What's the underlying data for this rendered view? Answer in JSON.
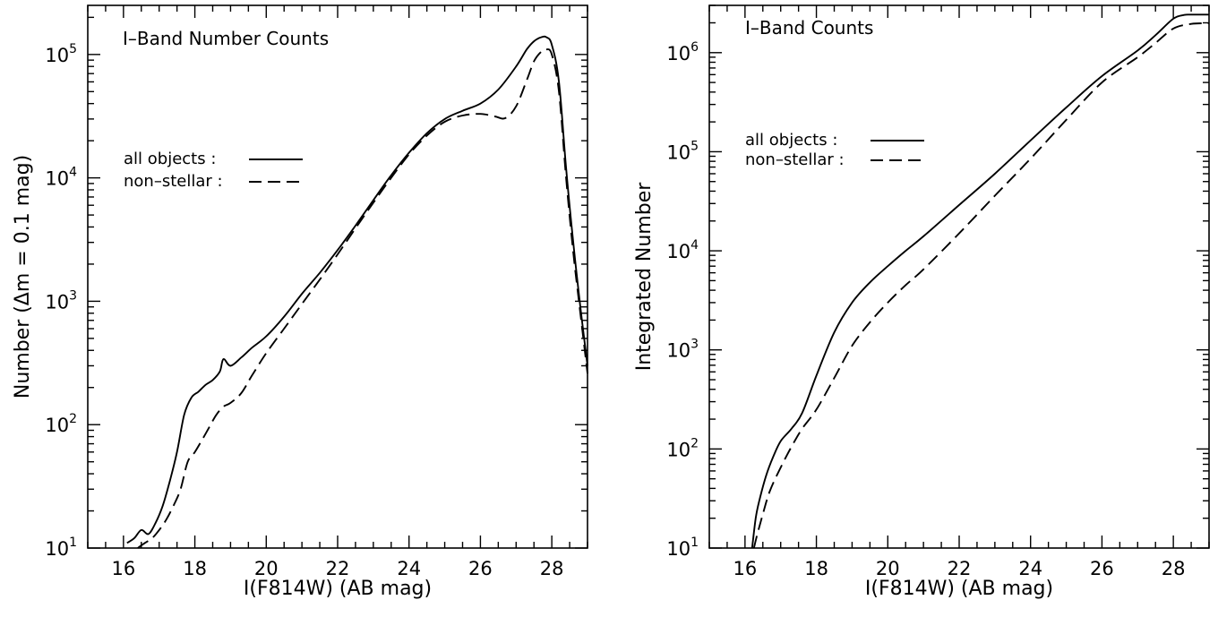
{
  "chart_data": [
    {
      "type": "line",
      "annotation": "I–Band Number Counts",
      "xlabel": "I(F814W) (AB mag)",
      "ylabel": "Number (Δm = 0.1 mag)",
      "xlim": [
        15,
        29
      ],
      "ylim": [
        10,
        250000
      ],
      "yscale": "log",
      "x_ticks": [
        "16",
        "18",
        "20",
        "22",
        "24",
        "26",
        "28"
      ],
      "y_ticks": [
        {
          "base": "10",
          "exp": "1"
        },
        {
          "base": "10",
          "exp": "2"
        },
        {
          "base": "10",
          "exp": "3"
        },
        {
          "base": "10",
          "exp": "4"
        },
        {
          "base": "10",
          "exp": "5"
        }
      ],
      "legend": "middle-left",
      "series": [
        {
          "name": "all objects :",
          "style": "solid",
          "x": [
            16.1,
            16.3,
            16.5,
            16.7,
            16.9,
            17.1,
            17.3,
            17.5,
            17.7,
            17.9,
            18.1,
            18.3,
            18.5,
            18.7,
            18.8,
            19.0,
            19.3,
            19.6,
            20.0,
            20.5,
            21.0,
            21.5,
            22.0,
            22.5,
            23.0,
            23.5,
            24.0,
            24.5,
            25.0,
            25.5,
            26.0,
            26.5,
            27.0,
            27.3,
            27.5,
            27.7,
            27.85,
            28.0,
            28.2,
            28.4,
            28.6,
            28.8,
            29.0
          ],
          "y": [
            11,
            12,
            14,
            13,
            16,
            22,
            35,
            60,
            120,
            165,
            185,
            210,
            230,
            270,
            340,
            300,
            350,
            420,
            520,
            750,
            1150,
            1700,
            2600,
            4100,
            6600,
            10500,
            16000,
            23000,
            30000,
            35000,
            40000,
            52000,
            80000,
            110000,
            128000,
            138000,
            138000,
            120000,
            60000,
            12000,
            3000,
            900,
            300
          ]
        },
        {
          "name": "non–stellar :",
          "style": "dashed",
          "x": [
            16.4,
            16.6,
            16.8,
            17.0,
            17.2,
            17.4,
            17.6,
            17.8,
            18.0,
            18.2,
            18.4,
            18.6,
            18.8,
            19.0,
            19.3,
            19.6,
            20.0,
            20.5,
            21.0,
            21.5,
            22.0,
            22.5,
            23.0,
            23.5,
            24.0,
            24.5,
            25.0,
            25.5,
            26.0,
            26.4,
            26.7,
            27.0,
            27.3,
            27.5,
            27.7,
            27.85,
            28.0,
            28.2,
            28.4,
            28.6,
            28.8,
            29.0
          ],
          "y": [
            10,
            11,
            12,
            14,
            17,
            22,
            30,
            50,
            60,
            75,
            95,
            120,
            140,
            150,
            180,
            250,
            380,
            600,
            950,
            1500,
            2400,
            3900,
            6300,
            10000,
            15500,
            22000,
            28500,
            32000,
            33000,
            31500,
            30500,
            38000,
            62000,
            88000,
            105000,
            110000,
            100000,
            50000,
            10000,
            2500,
            800,
            260
          ]
        }
      ]
    },
    {
      "type": "line",
      "annotation": "I–Band Counts",
      "xlabel": "I(F814W) (AB mag)",
      "ylabel": "Integrated Number",
      "xlim": [
        15,
        29
      ],
      "ylim": [
        10,
        3000000
      ],
      "yscale": "log",
      "x_ticks": [
        "16",
        "18",
        "20",
        "22",
        "24",
        "26",
        "28"
      ],
      "y_ticks": [
        {
          "base": "10",
          "exp": "1"
        },
        {
          "base": "10",
          "exp": "2"
        },
        {
          "base": "10",
          "exp": "3"
        },
        {
          "base": "10",
          "exp": "4"
        },
        {
          "base": "10",
          "exp": "5"
        },
        {
          "base": "10",
          "exp": "6"
        }
      ],
      "legend": "middle-left",
      "series": [
        {
          "name": "all objects :",
          "style": "solid",
          "x": [
            16.2,
            16.3,
            16.4,
            16.6,
            16.8,
            17.0,
            17.3,
            17.6,
            18.0,
            18.5,
            19.0,
            19.5,
            20.0,
            20.5,
            21.0,
            22.0,
            23.0,
            24.0,
            25.0,
            26.0,
            27.0,
            27.5,
            28.0,
            28.3,
            28.5,
            29.0
          ],
          "y": [
            10,
            20,
            30,
            55,
            85,
            120,
            160,
            230,
            550,
            1500,
            3000,
            4800,
            7000,
            10000,
            14000,
            29000,
            60000,
            130000,
            280000,
            580000,
            1050000,
            1500000,
            2200000,
            2400000,
            2420000,
            2420000
          ]
        },
        {
          "name": "non–stellar :",
          "style": "dashed",
          "x": [
            16.25,
            16.35,
            16.5,
            16.7,
            17.0,
            17.3,
            17.6,
            18.0,
            18.5,
            19.0,
            19.5,
            20.0,
            20.5,
            21.0,
            22.0,
            23.0,
            24.0,
            25.0,
            26.0,
            27.0,
            27.5,
            28.0,
            28.5,
            29.0
          ],
          "y": [
            10,
            14,
            22,
            38,
            65,
            105,
            160,
            250,
            520,
            1100,
            1900,
            3000,
            4500,
            6500,
            15000,
            36000,
            85000,
            210000,
            500000,
            900000,
            1250000,
            1750000,
            1950000,
            1980000
          ]
        }
      ]
    }
  ]
}
